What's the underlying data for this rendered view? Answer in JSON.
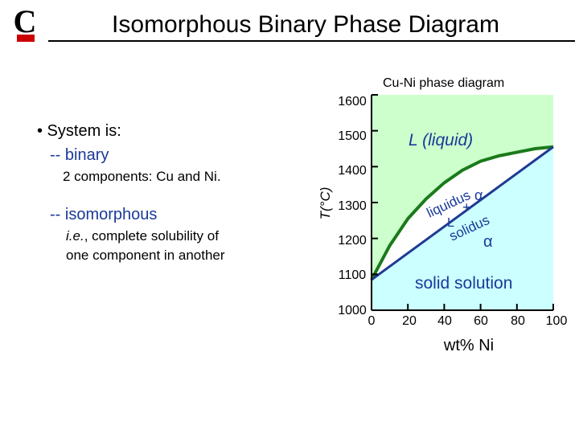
{
  "slide": {
    "title": "Isomorphous Binary Phase Diagram",
    "bullet": "• System is:",
    "item1": "-- binary",
    "item1_detail": "2 components:  Cu and Ni.",
    "item2": "-- isomorphous",
    "item2_detail_italic": "i.e.",
    "item2_detail_rest": ", complete solubility of",
    "item2_detail_line2": "one component in another"
  },
  "colors": {
    "liquid_region": "#ccffcc",
    "solid_region": "#ccffff",
    "liquidus_curve": "#1a7a1a",
    "solidus_curve": "#1f3a93",
    "blue_text": "#1a3a9a"
  },
  "chart_data": {
    "type": "phase-diagram",
    "title": "Cu-Ni phase  diagram",
    "ylabel": "T(°C)",
    "xlabel": "wt% Ni",
    "xlim": [
      0,
      100
    ],
    "ylim": [
      1000,
      1600
    ],
    "x_ticks": [
      "0",
      "20",
      "40",
      "60",
      "80",
      "100"
    ],
    "y_ticks": [
      "1000",
      "1100",
      "1200",
      "1300",
      "1400",
      "1500",
      "1600"
    ],
    "liquidus": [
      [
        0,
        1085
      ],
      [
        10,
        1180
      ],
      [
        20,
        1255
      ],
      [
        30,
        1310
      ],
      [
        40,
        1355
      ],
      [
        50,
        1390
      ],
      [
        60,
        1415
      ],
      [
        70,
        1430
      ],
      [
        80,
        1440
      ],
      [
        90,
        1450
      ],
      [
        100,
        1455
      ]
    ],
    "solidus": [
      [
        0,
        1085
      ],
      [
        100,
        1455
      ]
    ],
    "regions": {
      "liquid": "L (liquid)",
      "two_phase_L": "L",
      "two_phase_plus": "+",
      "two_phase_alpha": "α",
      "solid_alpha": "α",
      "solid_name": "solid solution"
    },
    "curve_labels": {
      "liquidus": "liquidus",
      "solidus": "solidus"
    }
  }
}
